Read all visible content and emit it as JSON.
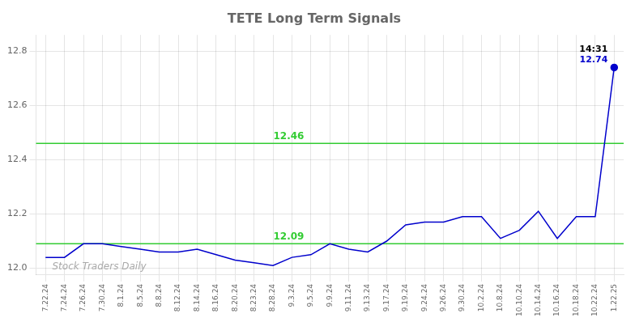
{
  "chart_data": {
    "type": "line",
    "title": "TETE Long Term Signals",
    "categories": [
      "7.22.24",
      "7.24.24",
      "7.26.24",
      "7.30.24",
      "8.1.24",
      "8.5.24",
      "8.8.24",
      "8.12.24",
      "8.14.24",
      "8.16.24",
      "8.20.24",
      "8.23.24",
      "8.28.24",
      "9.3.24",
      "9.5.24",
      "9.9.24",
      "9.11.24",
      "9.13.24",
      "9.17.24",
      "9.19.24",
      "9.24.24",
      "9.26.24",
      "9.30.24",
      "10.2.24",
      "10.8.24",
      "10.10.24",
      "10.14.24",
      "10.16.24",
      "10.18.24",
      "10.22.24",
      "1.22.25"
    ],
    "values": [
      12.04,
      12.04,
      12.09,
      12.09,
      12.08,
      12.07,
      12.06,
      12.06,
      12.07,
      12.05,
      12.03,
      12.02,
      12.01,
      12.04,
      12.05,
      12.09,
      12.07,
      12.06,
      12.1,
      12.16,
      12.17,
      12.17,
      12.19,
      12.19,
      12.11,
      12.14,
      12.21,
      12.11,
      12.19,
      12.19,
      12.74
    ],
    "color": "#0000cc",
    "ylim": [
      11.975,
      12.86
    ],
    "yticks": [
      {
        "value": 12.0,
        "label": "12.0"
      },
      12.2,
      12.4,
      12.6,
      12.8
    ],
    "grid": true,
    "hlines": [
      {
        "value": 12.09,
        "label": "12.09",
        "color": "#33cc33"
      },
      {
        "value": 12.46,
        "label": "12.46",
        "color": "#33cc33"
      }
    ],
    "annotations": [
      {
        "x": "1.22.25",
        "y": 12.74,
        "color": "#0000cc",
        "labels": [
          {
            "text": "14:31",
            "color": "#000000"
          },
          {
            "text": "12.74",
            "color": "#0000cc"
          }
        ]
      }
    ],
    "watermark": {
      "text": "Stock Traders Daily",
      "color": "#aaaaaa"
    }
  }
}
